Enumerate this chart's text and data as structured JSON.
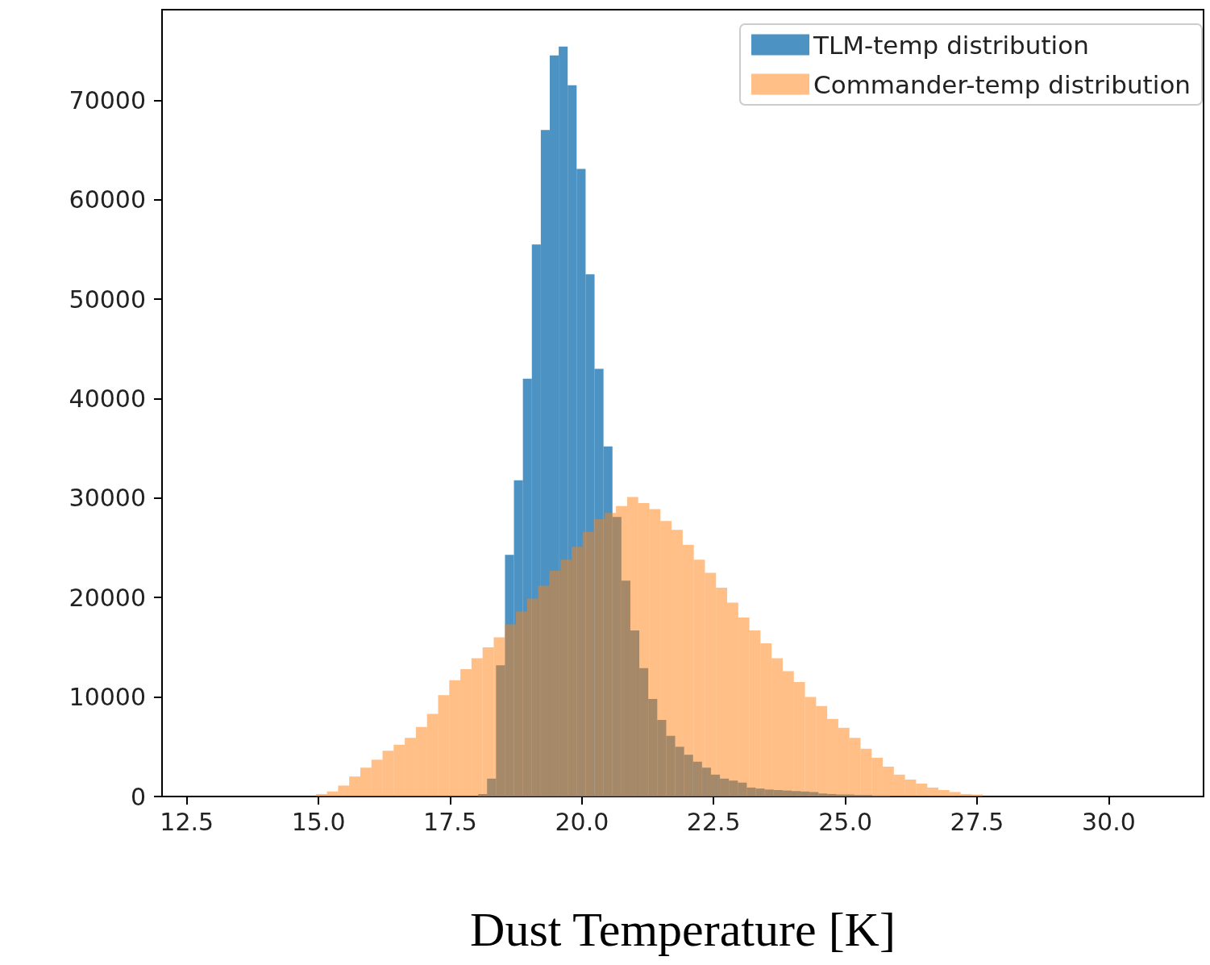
{
  "chart_data": {
    "type": "histogram",
    "xlabel": "Dust Temperature [K]",
    "bins": [
      18.03,
      18.2,
      18.37,
      18.54,
      18.71,
      18.88,
      19.05,
      19.22,
      19.39,
      19.56,
      19.73,
      19.9,
      20.07,
      20.24,
      20.41,
      20.58,
      20.75,
      20.92,
      21.09,
      21.26,
      21.43,
      21.6,
      21.77,
      21.94,
      22.11,
      22.28,
      22.45,
      22.62,
      22.79,
      22.96,
      23.13,
      23.3,
      23.47,
      23.64,
      23.81,
      23.98,
      24.15,
      24.32,
      24.49,
      24.66,
      24.83,
      25.0,
      25.17,
      25.34,
      25.51,
      25.68,
      25.85
    ],
    "series": [
      {
        "name": "TLM-temp distribution",
        "color": "#1f77b4",
        "values": [
          240,
          1800,
          13200,
          24300,
          31800,
          42000,
          55500,
          67000,
          74500,
          75400,
          71500,
          63100,
          52500,
          43000,
          35200,
          28100,
          21700,
          16700,
          12900,
          9800,
          7700,
          6100,
          5000,
          4200,
          3500,
          2900,
          2200,
          1800,
          1600,
          1400,
          900,
          800,
          700,
          650,
          600,
          550,
          500,
          450,
          300,
          250,
          200,
          200,
          150,
          150,
          100,
          100
        ]
      },
      {
        "name": "Commander-temp distribution",
        "color": "#ff7f0e",
        "bins": [
          14.95,
          15.161,
          15.372,
          15.583,
          15.794,
          16.005,
          16.216,
          16.427,
          16.638,
          16.849,
          17.06,
          17.271,
          17.482,
          17.693,
          17.904,
          18.115,
          18.326,
          18.537,
          18.748,
          18.959,
          19.17,
          19.381,
          19.592,
          19.803,
          20.014,
          20.225,
          20.436,
          20.647,
          20.858,
          21.069,
          21.28,
          21.491,
          21.702,
          21.913,
          22.124,
          22.335,
          22.546,
          22.757,
          22.968,
          23.179,
          23.39,
          23.601,
          23.812,
          24.023,
          24.234,
          24.445,
          24.656,
          24.867,
          25.078,
          25.289,
          25.5,
          25.711,
          25.922,
          26.133,
          26.344,
          26.555,
          26.766,
          26.977,
          27.188,
          27.399,
          27.61
        ],
        "values": [
          250,
          500,
          1100,
          2000,
          2900,
          3700,
          4600,
          5200,
          5900,
          7000,
          8300,
          10200,
          11700,
          12800,
          13900,
          15000,
          16000,
          17300,
          18600,
          19900,
          21200,
          22700,
          23800,
          25100,
          26600,
          27900,
          28500,
          29200,
          30100,
          29500,
          28900,
          27700,
          26800,
          25300,
          23800,
          22500,
          21000,
          19500,
          18000,
          16700,
          15400,
          13900,
          12600,
          11500,
          10000,
          9100,
          7800,
          6900,
          5900,
          4800,
          3900,
          3000,
          2200,
          1700,
          1300,
          900,
          650,
          450,
          250,
          200
        ]
      }
    ],
    "xlim": [
      12.03,
      31.8
    ],
    "xticks": [
      12.5,
      {
        "value": 15,
        "label": "15.0"
      },
      17.5,
      {
        "value": 20,
        "label": "20.0"
      },
      22.5,
      {
        "value": 25,
        "label": "25.0"
      },
      27.5,
      {
        "value": 30,
        "label": "30.0"
      }
    ],
    "ylim": [
      0,
      79100
    ],
    "yticks": [
      0,
      10000,
      20000,
      30000,
      40000,
      50000,
      60000,
      70000
    ],
    "grid": false,
    "legend": "top right"
  }
}
